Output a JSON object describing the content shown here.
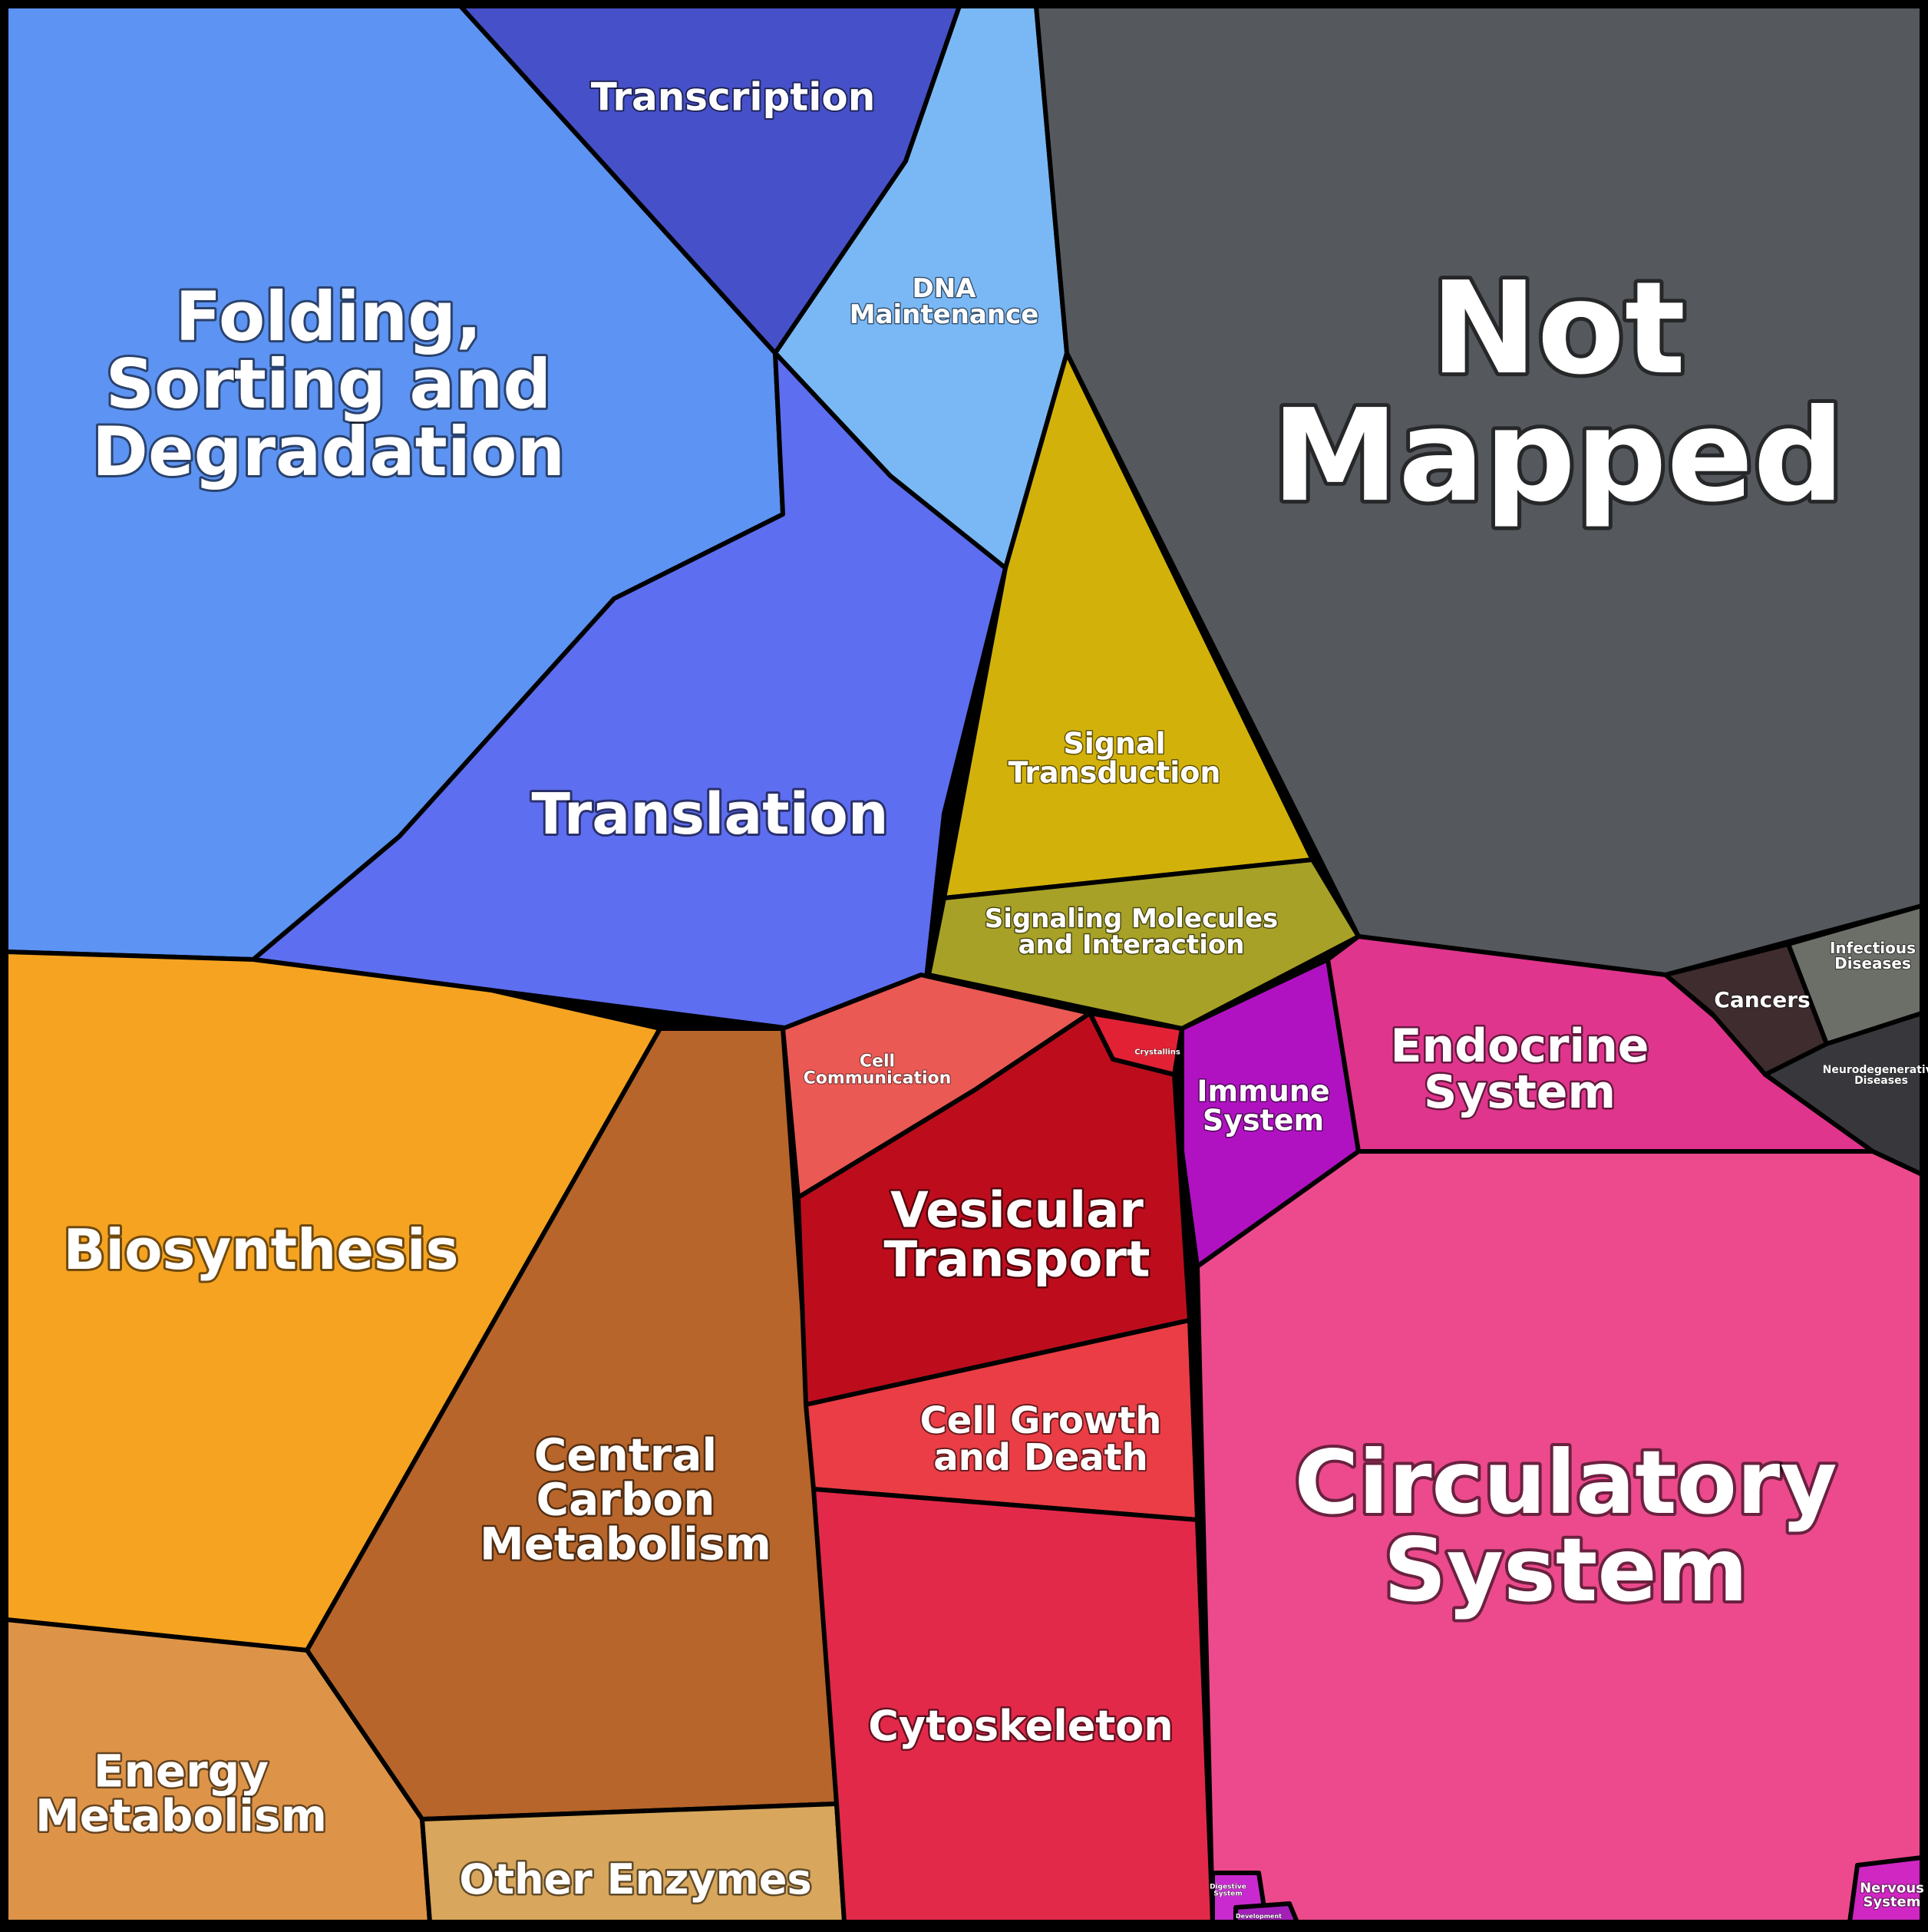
{
  "title": "",
  "regions": [
    {
      "id": "folding",
      "label_lines": [
        "Folding,",
        "Sorting and",
        "Degradation"
      ],
      "color": "#5d93f2"
    },
    {
      "id": "transcription",
      "label_lines": [
        "Transcription"
      ],
      "color": "#4650c8"
    },
    {
      "id": "dna",
      "label_lines": [
        "DNA",
        "Maintenance"
      ],
      "color": "#7ab8f5"
    },
    {
      "id": "translation",
      "label_lines": [
        "Translation"
      ],
      "color": "#5e6ef0"
    },
    {
      "id": "not_mapped",
      "label_lines": [
        "Not",
        "Mapped"
      ],
      "color": "#55585c"
    },
    {
      "id": "signal",
      "label_lines": [
        "Signal",
        "Transduction"
      ],
      "color": "#d2b20a"
    },
    {
      "id": "signaling",
      "label_lines": [
        "Signaling Molecules",
        "and Interaction"
      ],
      "color": "#a7a127"
    },
    {
      "id": "biosynthesis",
      "label_lines": [
        "Biosynthesis"
      ],
      "color": "#f5a321"
    },
    {
      "id": "carbon",
      "label_lines": [
        "Central",
        "Carbon",
        "Metabolism"
      ],
      "color": "#b7652a"
    },
    {
      "id": "energy",
      "label_lines": [
        "Energy",
        "Metabolism"
      ],
      "color": "#dd9448"
    },
    {
      "id": "other_enzymes",
      "label_lines": [
        "Other Enzymes"
      ],
      "color": "#d8a65c"
    },
    {
      "id": "cell_comm",
      "label_lines": [
        "Cell",
        "Communication"
      ],
      "color": "#ea5954"
    },
    {
      "id": "crystallins",
      "label_lines": [
        "Crystallins"
      ],
      "color": "#e22234"
    },
    {
      "id": "vesicular",
      "label_lines": [
        "Vesicular",
        "Transport"
      ],
      "color": "#bd0d1d"
    },
    {
      "id": "cell_growth",
      "label_lines": [
        "Cell Growth",
        "and Death"
      ],
      "color": "#ea3d45"
    },
    {
      "id": "cytoskeleton",
      "label_lines": [
        "Cytoskeleton"
      ],
      "color": "#e3294a"
    },
    {
      "id": "immune",
      "label_lines": [
        "Immune",
        "System"
      ],
      "color": "#b012c2"
    },
    {
      "id": "endocrine",
      "label_lines": [
        "Endocrine",
        "System"
      ],
      "color": "#e0358c"
    },
    {
      "id": "cancers",
      "label_lines": [
        "Cancers"
      ],
      "color": "#3e2c2e"
    },
    {
      "id": "infectious",
      "label_lines": [
        "Infectious",
        "Diseases"
      ],
      "color": "#6c6e68"
    },
    {
      "id": "neuro",
      "label_lines": [
        "Neurodegenerative",
        "Diseases"
      ],
      "color": "#38383c"
    },
    {
      "id": "circulatory",
      "label_lines": [
        "Circulatory",
        "System"
      ],
      "color": "#ec4a8c"
    },
    {
      "id": "digestive",
      "label_lines": [
        "Digestive",
        "System"
      ],
      "color": "#c92ad0"
    },
    {
      "id": "development",
      "label_lines": [
        "Development"
      ],
      "color": "#a21fb8"
    },
    {
      "id": "nervous",
      "label_lines": [
        "Nervous",
        "System"
      ],
      "color": "#d026c2"
    }
  ]
}
